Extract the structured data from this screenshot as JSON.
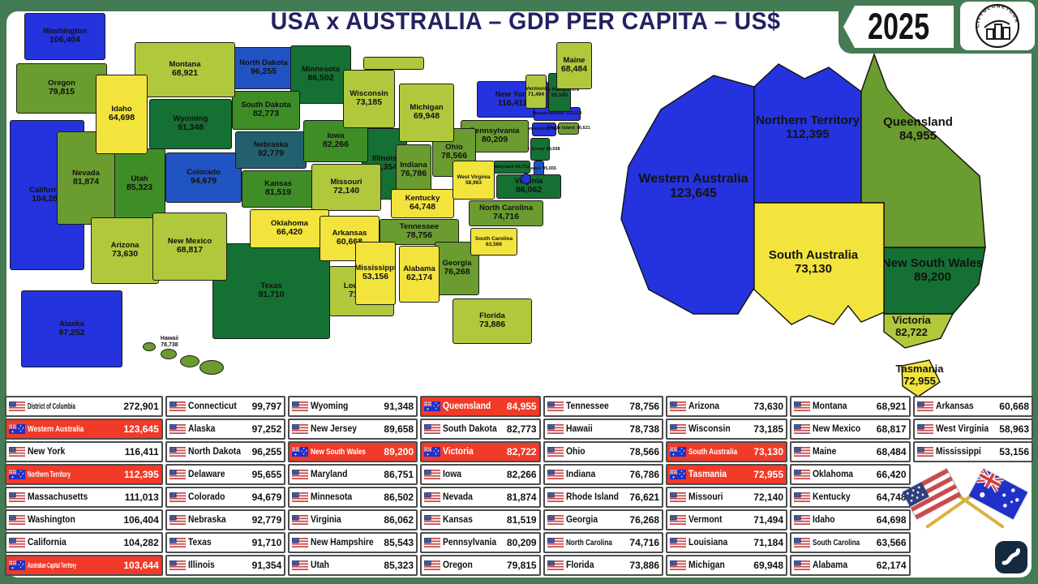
{
  "header": {
    "title": "USA x AUSTRALIA – GDP PER CAPITA – US$",
    "year": "2025",
    "logo_text": "CITYGLOBETOUR"
  },
  "palette": {
    "blue": "#2433dd",
    "medblue": "#2154c3",
    "teal": "#23606f",
    "dark": "#157033",
    "green": "#3f8d27",
    "olive": "#6a9c2f",
    "lime": "#b0c83c",
    "yellow": "#f2e43c",
    "red_row": "#f23a28",
    "frame_green": "#447a54",
    "title_navy": "#23215f",
    "gold": "#d9b23e",
    "logo_navy": "#152a3f"
  },
  "chart_data": {
    "type": "choropleth_map_with_ranking_table",
    "title": "USA x AUSTRALIA – GDP PER CAPITA – US$",
    "year": "2025",
    "units": "US$",
    "legend_position": "none",
    "regions": [
      {
        "name": "District of Columbia",
        "value": "272,901",
        "country": "us",
        "tone": "blue"
      },
      {
        "name": "Western Australia",
        "value": "123,645",
        "country": "au",
        "tone": "blue"
      },
      {
        "name": "New York",
        "value": "116,411",
        "country": "us",
        "tone": "blue"
      },
      {
        "name": "Northern Territory",
        "value": "112,395",
        "country": "au",
        "tone": "blue"
      },
      {
        "name": "Massachusetts",
        "value": "111,013",
        "country": "us",
        "tone": "blue"
      },
      {
        "name": "Washington",
        "value": "106,404",
        "country": "us",
        "tone": "blue"
      },
      {
        "name": "California",
        "value": "104,282",
        "country": "us",
        "tone": "blue"
      },
      {
        "name": "Australian Capital Territory",
        "value": "103,644",
        "country": "au",
        "tone": "dark"
      },
      {
        "name": "Connecticut",
        "value": "99,797",
        "country": "us",
        "tone": "blue"
      },
      {
        "name": "Alaska",
        "value": "97,252",
        "country": "us",
        "tone": "blue"
      },
      {
        "name": "North Dakota",
        "value": "96,255",
        "country": "us",
        "tone": "medblue"
      },
      {
        "name": "Delaware",
        "value": "95,655",
        "country": "us",
        "tone": "medblue"
      },
      {
        "name": "Colorado",
        "value": "94,679",
        "country": "us",
        "tone": "medblue"
      },
      {
        "name": "Nebraska",
        "value": "92,779",
        "country": "us",
        "tone": "teal"
      },
      {
        "name": "Texas",
        "value": "91,710",
        "country": "us",
        "tone": "dark"
      },
      {
        "name": "Illinois",
        "value": "91,354",
        "country": "us",
        "tone": "dark"
      },
      {
        "name": "Wyoming",
        "value": "91,348",
        "country": "us",
        "tone": "dark"
      },
      {
        "name": "New Jersey",
        "value": "89,658",
        "country": "us",
        "tone": "dark"
      },
      {
        "name": "New South Wales",
        "value": "89,200",
        "country": "au",
        "tone": "dark"
      },
      {
        "name": "Maryland",
        "value": "86,751",
        "country": "us",
        "tone": "dark"
      },
      {
        "name": "Minnesota",
        "value": "86,502",
        "country": "us",
        "tone": "dark"
      },
      {
        "name": "Virginia",
        "value": "86,062",
        "country": "us",
        "tone": "dark"
      },
      {
        "name": "New Hampshire",
        "value": "85,543",
        "country": "us",
        "tone": "dark"
      },
      {
        "name": "Utah",
        "value": "85,323",
        "country": "us",
        "tone": "green"
      },
      {
        "name": "Queensland",
        "value": "84,955",
        "country": "au",
        "tone": "olive"
      },
      {
        "name": "South Dakota",
        "value": "82,773",
        "country": "us",
        "tone": "green"
      },
      {
        "name": "Victoria",
        "value": "82,722",
        "country": "au",
        "tone": "lime"
      },
      {
        "name": "Iowa",
        "value": "82,266",
        "country": "us",
        "tone": "green"
      },
      {
        "name": "Nevada",
        "value": "81,874",
        "country": "us",
        "tone": "olive"
      },
      {
        "name": "Kansas",
        "value": "81,519",
        "country": "us",
        "tone": "green"
      },
      {
        "name": "Pennsylvania",
        "value": "80,209",
        "country": "us",
        "tone": "olive"
      },
      {
        "name": "Oregon",
        "value": "79,815",
        "country": "us",
        "tone": "olive"
      },
      {
        "name": "Tennessee",
        "value": "78,756",
        "country": "us",
        "tone": "olive"
      },
      {
        "name": "Hawaii",
        "value": "78,738",
        "country": "us",
        "tone": "olive"
      },
      {
        "name": "Ohio",
        "value": "78,566",
        "country": "us",
        "tone": "olive"
      },
      {
        "name": "Indiana",
        "value": "76,786",
        "country": "us",
        "tone": "olive"
      },
      {
        "name": "Rhode Island",
        "value": "76,621",
        "country": "us",
        "tone": "olive"
      },
      {
        "name": "Georgia",
        "value": "76,268",
        "country": "us",
        "tone": "olive"
      },
      {
        "name": "North Carolina",
        "value": "74,716",
        "country": "us",
        "tone": "olive"
      },
      {
        "name": "Florida",
        "value": "73,886",
        "country": "us",
        "tone": "lime"
      },
      {
        "name": "Arizona",
        "value": "73,630",
        "country": "us",
        "tone": "lime"
      },
      {
        "name": "Wisconsin",
        "value": "73,185",
        "country": "us",
        "tone": "lime"
      },
      {
        "name": "South Australia",
        "value": "73,130",
        "country": "au",
        "tone": "yellow"
      },
      {
        "name": "Tasmania",
        "value": "72,955",
        "country": "au",
        "tone": "yellow"
      },
      {
        "name": "Missouri",
        "value": "72,140",
        "country": "us",
        "tone": "lime"
      },
      {
        "name": "Vermont",
        "value": "71,494",
        "country": "us",
        "tone": "lime"
      },
      {
        "name": "Louisiana",
        "value": "71,184",
        "country": "us",
        "tone": "lime"
      },
      {
        "name": "Michigan",
        "value": "69,948",
        "country": "us",
        "tone": "lime"
      },
      {
        "name": "Montana",
        "value": "68,921",
        "country": "us",
        "tone": "lime"
      },
      {
        "name": "New Mexico",
        "value": "68,817",
        "country": "us",
        "tone": "lime"
      },
      {
        "name": "Maine",
        "value": "68,484",
        "country": "us",
        "tone": "lime"
      },
      {
        "name": "Oklahoma",
        "value": "66,420",
        "country": "us",
        "tone": "yellow"
      },
      {
        "name": "Kentucky",
        "value": "64,748",
        "country": "us",
        "tone": "yellow"
      },
      {
        "name": "Idaho",
        "value": "64,698",
        "country": "us",
        "tone": "yellow"
      },
      {
        "name": "South Carolina",
        "value": "63,566",
        "country": "us",
        "tone": "yellow"
      },
      {
        "name": "Alabama",
        "value": "62,174",
        "country": "us",
        "tone": "yellow"
      },
      {
        "name": "Arkansas",
        "value": "60,668",
        "country": "us",
        "tone": "yellow"
      },
      {
        "name": "West Virginia",
        "value": "58,963",
        "country": "us",
        "tone": "yellow"
      },
      {
        "name": "Mississippi",
        "value": "53,156",
        "country": "us",
        "tone": "yellow"
      }
    ]
  }
}
